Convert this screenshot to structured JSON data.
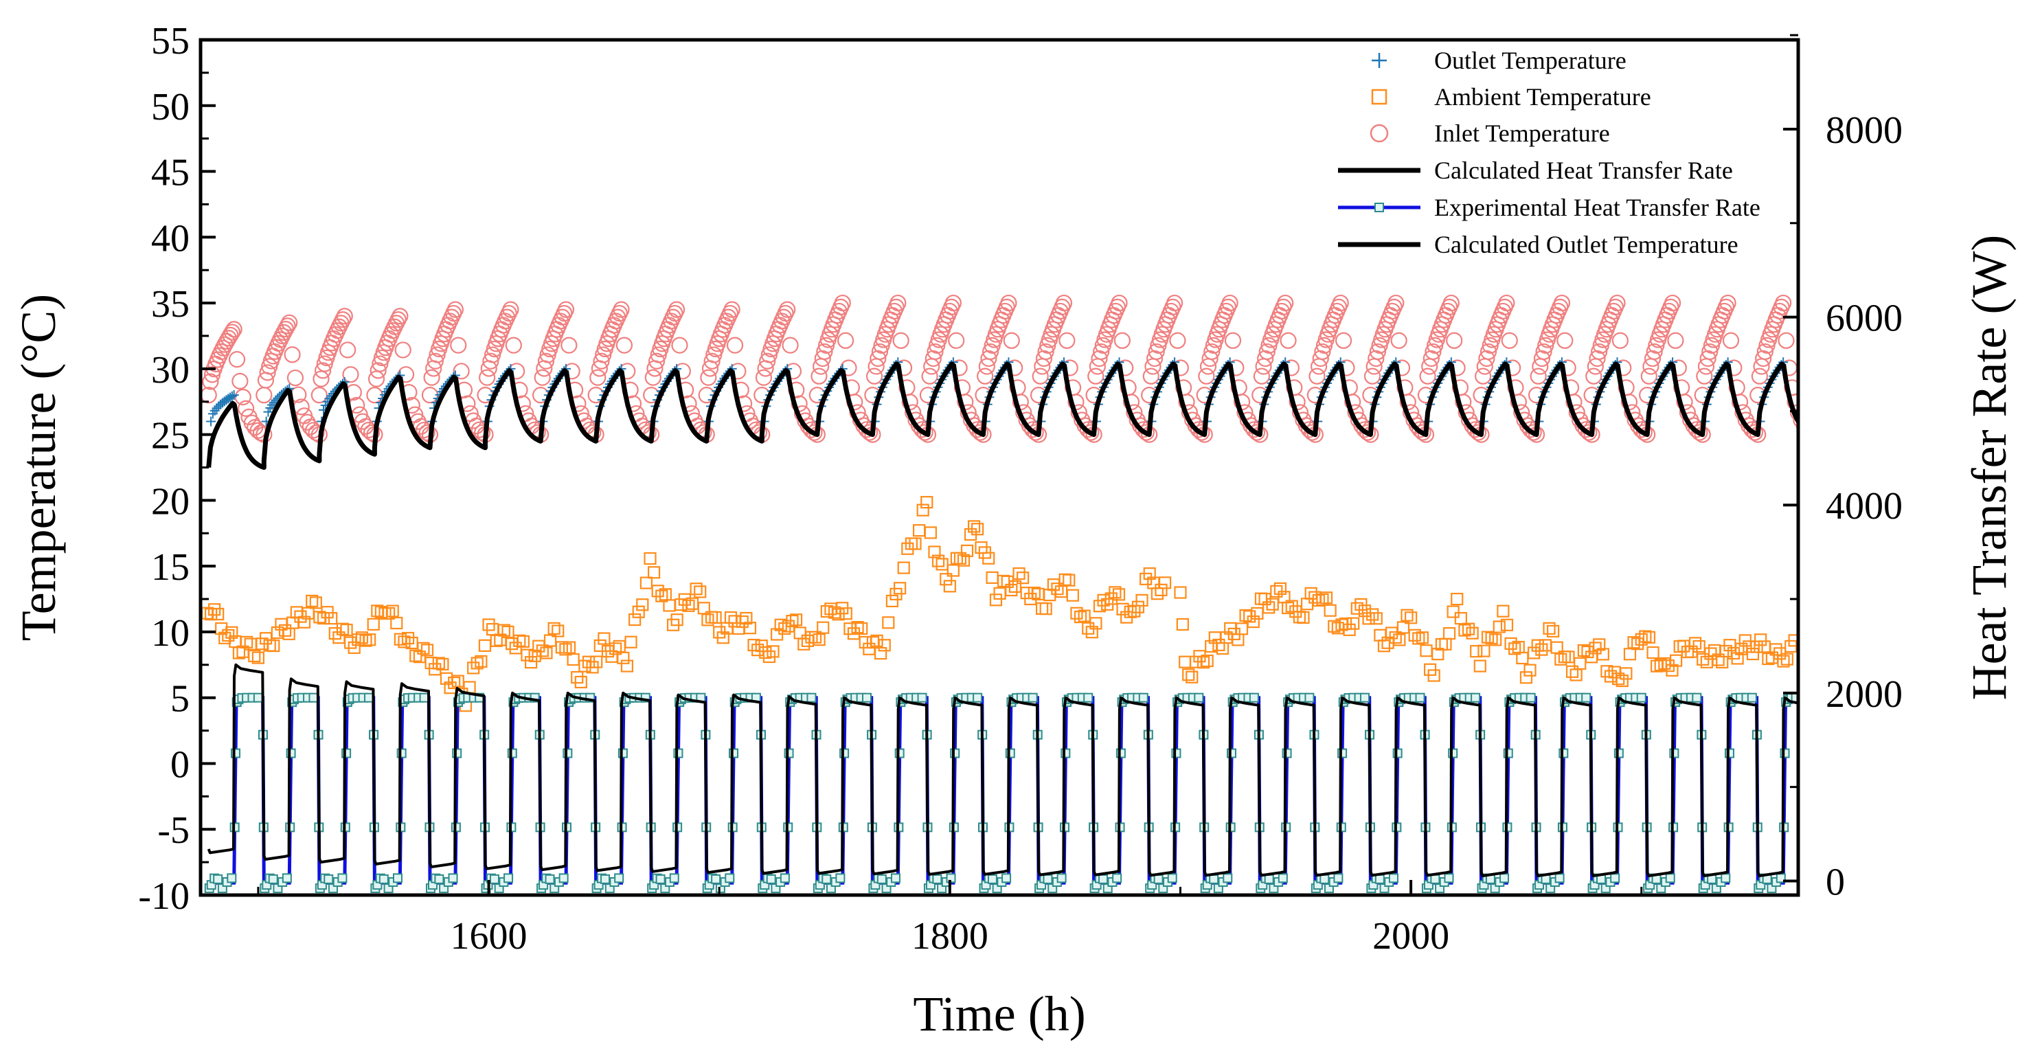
{
  "chart_data": {
    "type": "line",
    "xlabel": "Time (h)",
    "ylabel_left": "Temperature (°C)",
    "ylabel_right": "Heat Transfer Rate (W)",
    "xlim": [
      1475,
      2168
    ],
    "ylim_left": [
      -10,
      55
    ],
    "ylim_right": [
      -150,
      8950
    ],
    "x_ticks": [
      "1600",
      "1800",
      "2000"
    ],
    "y_ticks_left": [
      "55",
      "50",
      "45",
      "40",
      "35",
      "30",
      "25",
      "20",
      "15",
      "10",
      "5",
      "0",
      "-5",
      "-10"
    ],
    "y_ticks_right": [
      "8000",
      "6000",
      "4000",
      "2000",
      "0"
    ],
    "grid": false,
    "legend_position": "top-right",
    "cycle_period_h": 24,
    "series": [
      {
        "name": "Outlet Temperature",
        "axis": "left",
        "marker": "plus",
        "color": "#1f77b4",
        "cycle_min": 26,
        "cycle_max": [
          28,
          28.5,
          29,
          29.5,
          29.5,
          30,
          30,
          30,
          30,
          30,
          30,
          30,
          30.5,
          30.5,
          30.5,
          30.5,
          30.5,
          30.5,
          30.5,
          30.5,
          30.5,
          30.5,
          30.5,
          30.5,
          30.5,
          30.5,
          30.5,
          30.5,
          30.5
        ]
      },
      {
        "name": "Ambient Temperature",
        "axis": "left",
        "marker": "square",
        "color": "#ff8c1a",
        "x": [
          1478,
          1490,
          1500,
          1510,
          1525,
          1535,
          1545,
          1555,
          1565,
          1575,
          1585,
          1590,
          1600,
          1610,
          1620,
          1630,
          1640,
          1650,
          1660,
          1670,
          1680,
          1690,
          1700,
          1710,
          1720,
          1730,
          1740,
          1750,
          1760,
          1770,
          1780,
          1790,
          1795,
          1800,
          1812,
          1820,
          1830,
          1840,
          1850,
          1860,
          1870,
          1880,
          1885,
          1895,
          1900,
          1902,
          1905,
          1915,
          1925,
          1935,
          1945,
          1950,
          1960,
          1970,
          1980,
          1990,
          2000,
          2010,
          2020,
          2030,
          2040,
          2050,
          2060,
          2070,
          2080,
          2090,
          2100,
          2110,
          2120,
          2130,
          2140,
          2150,
          2160,
          2168
        ],
        "y": [
          12,
          9,
          8.5,
          10,
          12,
          10,
          9,
          12,
          9,
          8,
          6,
          5,
          10,
          9.5,
          8,
          10,
          6.5,
          9,
          8,
          15,
          11,
          13,
          10,
          11,
          8,
          11,
          9,
          12,
          10,
          8.5,
          15,
          19.5,
          15,
          14,
          18,
          13,
          14,
          12,
          14,
          10,
          13,
          11,
          14,
          13,
          12.5,
          7.5,
          7,
          9,
          10,
          12,
          13,
          11,
          13,
          10,
          12,
          9,
          11,
          7,
          12,
          8,
          11,
          7,
          10,
          7,
          9,
          6,
          10,
          7,
          9,
          8,
          8.5,
          9,
          8,
          9
        ]
      },
      {
        "name": "Inlet Temperature",
        "axis": "left",
        "marker": "circle",
        "color": "#f08080",
        "cycle_min": 25,
        "cycle_max": [
          33,
          33.5,
          34,
          34,
          34.5,
          34.5,
          34.5,
          34.5,
          34.5,
          34.5,
          34.5,
          35,
          35,
          35,
          35,
          35,
          35,
          35,
          35,
          35,
          35,
          35,
          35,
          35,
          35,
          35,
          35,
          35,
          35
        ]
      },
      {
        "name": "Calculated Heat Transfer Rate",
        "axis": "right",
        "marker": "line",
        "color": "#000000",
        "cycle_high": [
          2300,
          2150,
          2120,
          2100,
          2050,
          2000,
          2000,
          2000,
          1980,
          1980,
          1960,
          1950,
          1950,
          1950,
          1950,
          1950,
          1950,
          1950,
          1950,
          1950,
          1950,
          1950,
          1950,
          1950,
          1950,
          1950,
          1950,
          1950,
          1950
        ],
        "cycle_low": [
          300,
          230,
          200,
          180,
          150,
          130,
          120,
          110,
          100,
          90,
          80,
          80,
          75,
          70,
          70,
          65,
          65,
          60,
          60,
          60,
          60,
          60,
          60,
          55,
          55,
          55,
          55,
          55,
          55
        ]
      },
      {
        "name": "Experimental Heat Transfer Rate",
        "axis": "right",
        "marker": "line-square",
        "color": "#1010e0",
        "marker_color": "#2e8b8b",
        "cycle_high": 1950,
        "cycle_low": -20
      },
      {
        "name": "Calculated Outlet Temperature",
        "axis": "left",
        "marker": "line",
        "color": "#000000",
        "cycle_min": [
          22.5,
          23,
          23.5,
          24,
          24,
          24.5,
          24.5,
          24.5,
          24.5,
          24.5,
          25,
          25,
          25,
          25,
          25,
          25,
          25,
          25,
          25,
          25,
          25,
          25,
          25,
          25,
          25,
          25,
          25,
          25,
          25
        ],
        "cycle_max": [
          27.5,
          28.5,
          29,
          29.5,
          29.5,
          30,
          30,
          30,
          30,
          30,
          30,
          30,
          30.5,
          30.5,
          30.5,
          30.5,
          30.5,
          30.5,
          30.5,
          30.5,
          30.5,
          30.5,
          30.5,
          30.5,
          30.5,
          30.5,
          30.5,
          30.5,
          30.5
        ]
      }
    ]
  }
}
